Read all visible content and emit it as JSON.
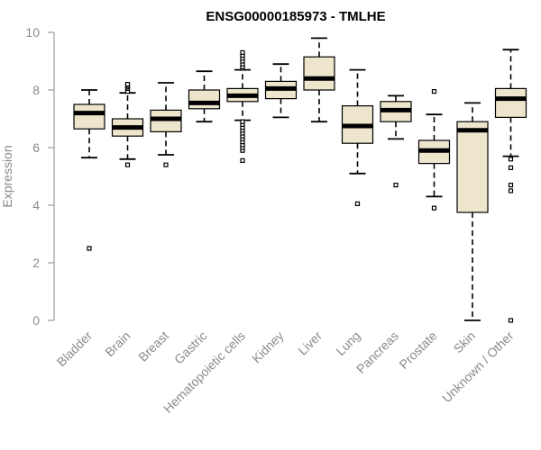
{
  "chart_data": {
    "type": "boxplot",
    "title": "ENSG00000185973 - TMLHE",
    "xlabel": "",
    "ylabel": "Expression",
    "ylim": [
      0,
      10
    ],
    "yticks": [
      0,
      2,
      4,
      6,
      8,
      10
    ],
    "grid": false,
    "box_fill": "#ede6cc",
    "median_color": "#000000",
    "outline_color": "#000000",
    "categories": [
      "Bladder",
      "Brain",
      "Breast",
      "Gastric",
      "Hematopoietic cells",
      "Kidney",
      "Liver",
      "Lung",
      "Pancreas",
      "Prostate",
      "Skin",
      "Unknown / Other"
    ],
    "boxes": [
      {
        "name": "Bladder",
        "whisker_low": 5.65,
        "q1": 6.65,
        "median": 7.2,
        "q3": 7.5,
        "whisker_high": 8.0,
        "outliers": [
          2.5
        ]
      },
      {
        "name": "Brain",
        "whisker_low": 5.6,
        "q1": 6.4,
        "median": 6.7,
        "q3": 7.0,
        "whisker_high": 7.9,
        "outliers": [
          5.4,
          7.95,
          8.05,
          8.1,
          8.15,
          8.2
        ]
      },
      {
        "name": "Breast",
        "whisker_low": 5.75,
        "q1": 6.55,
        "median": 7.0,
        "q3": 7.3,
        "whisker_high": 8.25,
        "outliers": [
          5.4
        ]
      },
      {
        "name": "Gastric",
        "whisker_low": 6.9,
        "q1": 7.35,
        "median": 7.55,
        "q3": 8.0,
        "whisker_high": 8.65,
        "outliers": []
      },
      {
        "name": "Hematopoietic cells",
        "whisker_low": 6.95,
        "q1": 7.6,
        "median": 7.8,
        "q3": 8.05,
        "whisker_high": 8.7,
        "outliers": [
          5.55,
          5.9,
          6.0,
          6.1,
          6.2,
          6.3,
          6.4,
          6.5,
          6.6,
          6.7,
          6.8,
          6.9,
          8.75,
          8.8,
          8.9,
          9.0,
          9.1,
          9.2,
          9.3
        ]
      },
      {
        "name": "Kidney",
        "whisker_low": 7.05,
        "q1": 7.7,
        "median": 8.05,
        "q3": 8.3,
        "whisker_high": 8.9,
        "outliers": []
      },
      {
        "name": "Liver",
        "whisker_low": 6.9,
        "q1": 8.0,
        "median": 8.4,
        "q3": 9.15,
        "whisker_high": 9.8,
        "outliers": []
      },
      {
        "name": "Lung",
        "whisker_low": 5.1,
        "q1": 6.15,
        "median": 6.75,
        "q3": 7.45,
        "whisker_high": 8.7,
        "outliers": [
          4.05
        ]
      },
      {
        "name": "Pancreas",
        "whisker_low": 6.3,
        "q1": 6.9,
        "median": 7.3,
        "q3": 7.6,
        "whisker_high": 7.8,
        "outliers": [
          4.7
        ]
      },
      {
        "name": "Prostate",
        "whisker_low": 4.3,
        "q1": 5.45,
        "median": 5.9,
        "q3": 6.25,
        "whisker_high": 7.15,
        "outliers": [
          3.9,
          7.95
        ]
      },
      {
        "name": "Skin",
        "whisker_low": 0.0,
        "q1": 3.75,
        "median": 6.6,
        "q3": 6.9,
        "whisker_high": 7.55,
        "outliers": []
      },
      {
        "name": "Unknown / Other",
        "whisker_low": 5.7,
        "q1": 7.05,
        "median": 7.7,
        "q3": 8.05,
        "whisker_high": 9.4,
        "outliers": [
          0.0,
          4.5,
          4.7,
          5.3,
          5.6
        ]
      }
    ]
  }
}
